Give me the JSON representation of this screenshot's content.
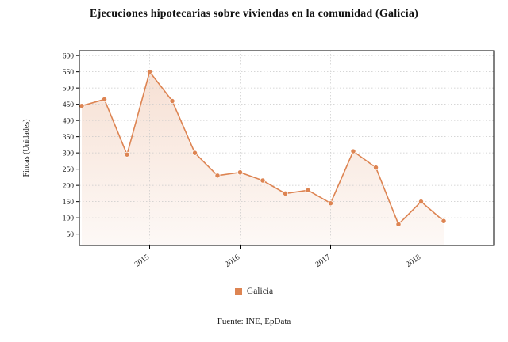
{
  "chart_data": {
    "type": "line",
    "title": "Ejecuciones hipotecarias sobre viviendas en la comunidad (Galicia)",
    "ylabel": "Fincas (Unidades)",
    "xlabel": "",
    "series": [
      {
        "name": "Galicia",
        "color": "#dd8452",
        "values": [
          445,
          465,
          295,
          550,
          460,
          300,
          230,
          240,
          215,
          175,
          185,
          145,
          305,
          255,
          80,
          150,
          90
        ]
      }
    ],
    "x_ticks": [
      {
        "index": 3,
        "label": "2015"
      },
      {
        "index": 7,
        "label": "2016"
      },
      {
        "index": 11,
        "label": "2017"
      },
      {
        "index": 15,
        "label": "2018"
      }
    ],
    "y_ticks": [
      50,
      100,
      150,
      200,
      250,
      300,
      350,
      400,
      450,
      500,
      550,
      600
    ],
    "ylim": [
      15,
      615
    ],
    "grid": true,
    "area_fill": true,
    "legend_position": "bottom"
  },
  "colors": {
    "line": "#dd8452",
    "marker": "#dd8452",
    "area_top": "rgba(221,132,82,0.25)",
    "area_bottom": "rgba(221,132,82,0.05)",
    "grid": "#c9c9c9",
    "axis": "#000000"
  },
  "source": "Fuente: INE, EpData"
}
